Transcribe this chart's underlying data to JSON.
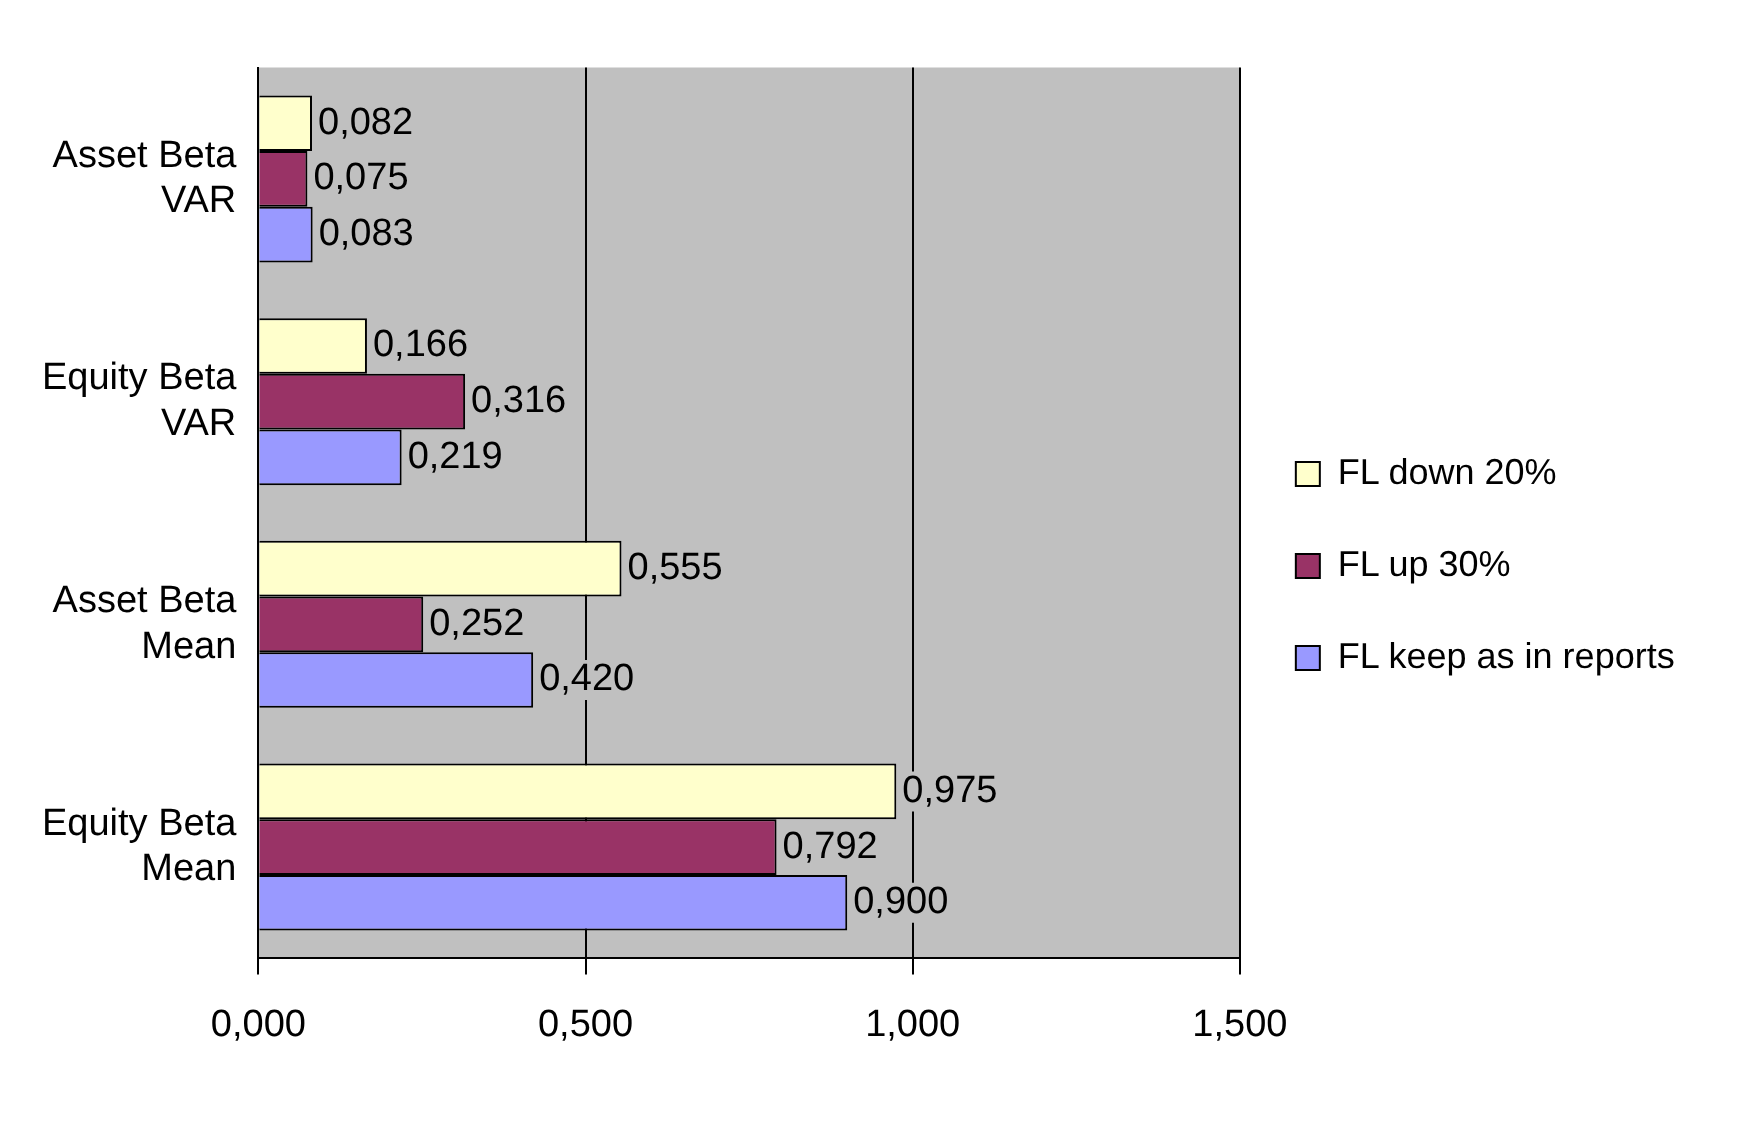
{
  "chart_data": {
    "type": "bar",
    "orientation": "horizontal",
    "categories": [
      "Asset Beta VAR",
      "Equity Beta VAR",
      "Asset Beta Mean",
      "Equity Beta Mean"
    ],
    "series": [
      {
        "name": "FL down 20%",
        "color": "#ffffcc",
        "values": [
          0.082,
          0.166,
          0.555,
          0.975
        ],
        "value_labels": [
          "0,082",
          "0,166",
          "0,555",
          "0,975"
        ]
      },
      {
        "name": "FL up 30%",
        "color": "#993366",
        "values": [
          0.075,
          0.316,
          0.252,
          0.792
        ],
        "value_labels": [
          "0,075",
          "0,316",
          "0,252",
          "0,792"
        ]
      },
      {
        "name": "FL keep as in reports",
        "color": "#9999ff",
        "values": [
          0.083,
          0.219,
          0.42,
          0.9
        ],
        "value_labels": [
          "0,083",
          "0,219",
          "0,420",
          "0,900"
        ]
      }
    ],
    "xlim": [
      0,
      1.5
    ],
    "xticks": [
      {
        "value": 0,
        "label": "0,000"
      },
      {
        "value": 0.5,
        "label": "0,500"
      },
      {
        "value": 1,
        "label": "1,000"
      },
      {
        "value": 1.5,
        "label": "1,500"
      }
    ],
    "grid": "x",
    "legend": "right"
  }
}
